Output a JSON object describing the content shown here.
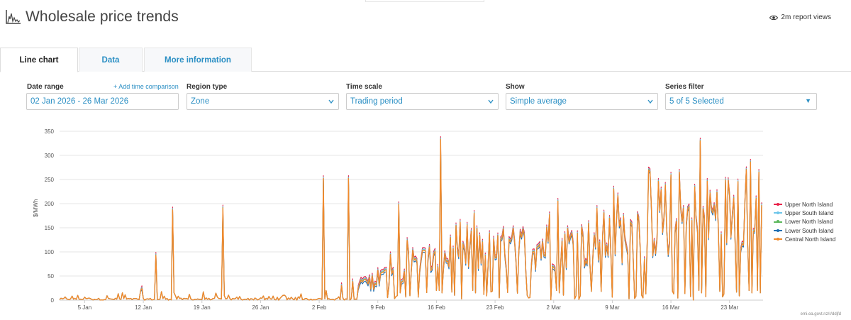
{
  "header": {
    "title": "Wholesale price trends",
    "views": "2m report views"
  },
  "tabs": [
    "Line chart",
    "Data",
    "More information"
  ],
  "controls": {
    "date_range_label": "Date range",
    "add_time_comparison": "+ Add time comparison",
    "date_range_value": "02 Jan 2026 - 26 Mar 2026",
    "region_type_label": "Region type",
    "region_type_value": "Zone",
    "time_scale_label": "Time scale",
    "time_scale_value": "Trading period",
    "show_label": "Show",
    "show_value": "Simple average",
    "series_filter_label": "Series filter",
    "series_filter_value": "5 of 5 Selected"
  },
  "footer": "emi.ea.govt.nz/r/ddjfd",
  "colors": {
    "accent": "#2b8fc4"
  },
  "chart_data": {
    "type": "line",
    "title": "",
    "xlabel": "",
    "ylabel": "$/MWh",
    "ylim": [
      0,
      350
    ],
    "xlim": [
      "2026-01-02",
      "2026-03-26"
    ],
    "y_ticks": [
      0,
      50,
      100,
      150,
      200,
      250,
      300,
      350
    ],
    "x_ticks": [
      "5 Jan",
      "12 Jan",
      "19 Jan",
      "26 Jan",
      "2 Feb",
      "9 Feb",
      "16 Feb",
      "23 Feb",
      "2 Mar",
      "9 Mar",
      "16 Mar",
      "23 Mar"
    ],
    "grid": "horizontal",
    "legend_position": "right",
    "series": [
      {
        "name": "Upper North Island",
        "color": "#e8234a",
        "offset": 6
      },
      {
        "name": "Upper South Island",
        "color": "#6ec6ea",
        "offset": 3
      },
      {
        "name": "Lower North Island",
        "color": "#5cb85c",
        "offset": 1
      },
      {
        "name": "Lower South Island",
        "color": "#1f6fb2",
        "offset": -4
      },
      {
        "name": "Central North Island",
        "color": "#f08a2c",
        "offset": 0
      }
    ],
    "approx_daily_level": {
      "dates": [
        "2026-01-02",
        "2026-01-09",
        "2026-01-16",
        "2026-01-23",
        "2026-01-30",
        "2026-02-06",
        "2026-02-13",
        "2026-02-20",
        "2026-02-27",
        "2026-03-06",
        "2026-03-13",
        "2026-03-20",
        "2026-03-26"
      ],
      "values": [
        3,
        10,
        12,
        4,
        6,
        20,
        75,
        95,
        110,
        115,
        150,
        175,
        190
      ]
    },
    "spikes": [
      {
        "date": "2026-01-13",
        "value": 93
      },
      {
        "date": "2026-01-15",
        "value": 188
      },
      {
        "date": "2026-01-15",
        "value": 187
      },
      {
        "date": "2026-01-21",
        "value": 191
      },
      {
        "date": "2026-02-02",
        "value": 252
      },
      {
        "date": "2026-02-05",
        "value": 252
      },
      {
        "date": "2026-02-11",
        "value": 198
      },
      {
        "date": "2026-02-16",
        "value": 333
      },
      {
        "date": "2026-02-20",
        "value": 180
      },
      {
        "date": "2026-03-02",
        "value": 205
      },
      {
        "date": "2026-03-19",
        "value": 330
      },
      {
        "date": "2026-03-25",
        "value": 286
      },
      {
        "date": "2026-03-26",
        "value": 265
      }
    ]
  }
}
